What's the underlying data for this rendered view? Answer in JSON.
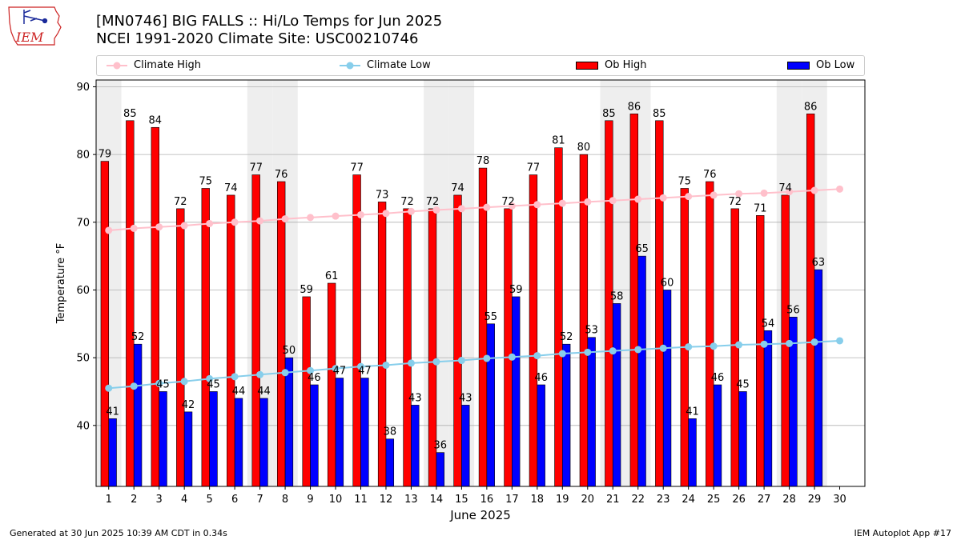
{
  "header": {
    "title_line1": "[MN0746] BIG FALLS :: Hi/Lo Temps for Jun 2025",
    "title_line2": "NCEI 1991-2020 Climate Site: USC00210746"
  },
  "logo": {
    "text": "IEM",
    "icon": "iowa-state-outline-icon"
  },
  "footer": {
    "generated": "Generated at 30 Jun 2025 10:39 AM CDT in 0.34s",
    "app": "IEM Autoplot App #17"
  },
  "colors": {
    "ob_high": "#ff0000",
    "ob_low": "#0000ff",
    "climate_high": "#ffc0cb",
    "climate_low": "#87ceeb",
    "weekend_band": "#eeeeee",
    "grid": "#b0b0b0"
  },
  "chart_data": {
    "type": "bar",
    "xlabel": "June 2025",
    "ylabel": "Temperature °F",
    "ylim": [
      31,
      91
    ],
    "yticks": [
      40,
      50,
      60,
      70,
      80,
      90
    ],
    "grid": "horizontal",
    "legend_placement": "top, above plot",
    "categories": [
      1,
      2,
      3,
      4,
      5,
      6,
      7,
      8,
      9,
      10,
      11,
      12,
      13,
      14,
      15,
      16,
      17,
      18,
      19,
      20,
      21,
      22,
      23,
      24,
      25,
      26,
      27,
      28,
      29,
      30
    ],
    "weekend_days": [
      1,
      7,
      8,
      14,
      15,
      21,
      22,
      28,
      29
    ],
    "series": [
      {
        "name": "Ob High",
        "kind": "bar",
        "values": [
          79,
          85,
          84,
          72,
          75,
          74,
          77,
          76,
          59,
          61,
          77,
          73,
          72,
          72,
          74,
          78,
          72,
          77,
          81,
          80,
          85,
          86,
          85,
          75,
          76,
          72,
          71,
          74,
          86,
          null
        ]
      },
      {
        "name": "Ob Low",
        "kind": "bar",
        "values": [
          41,
          52,
          45,
          42,
          45,
          44,
          44,
          50,
          46,
          47,
          47,
          38,
          43,
          36,
          43,
          55,
          59,
          46,
          52,
          53,
          58,
          65,
          60,
          41,
          46,
          45,
          54,
          56,
          63,
          null
        ]
      },
      {
        "name": "Climate High",
        "kind": "line",
        "values": [
          68.8,
          69.1,
          69.3,
          69.5,
          69.8,
          70.0,
          70.2,
          70.5,
          70.7,
          70.9,
          71.1,
          71.3,
          71.6,
          71.8,
          72.0,
          72.2,
          72.4,
          72.6,
          72.8,
          73.0,
          73.2,
          73.4,
          73.6,
          73.8,
          74.0,
          74.2,
          74.3,
          74.5,
          74.7,
          74.9
        ]
      },
      {
        "name": "Climate Low",
        "kind": "line",
        "values": [
          45.5,
          45.8,
          46.2,
          46.5,
          46.9,
          47.2,
          47.5,
          47.8,
          48.1,
          48.4,
          48.7,
          48.9,
          49.2,
          49.4,
          49.6,
          49.9,
          50.1,
          50.3,
          50.6,
          50.8,
          51.0,
          51.2,
          51.4,
          51.6,
          51.7,
          51.9,
          52.0,
          52.1,
          52.3,
          52.5
        ]
      }
    ]
  }
}
